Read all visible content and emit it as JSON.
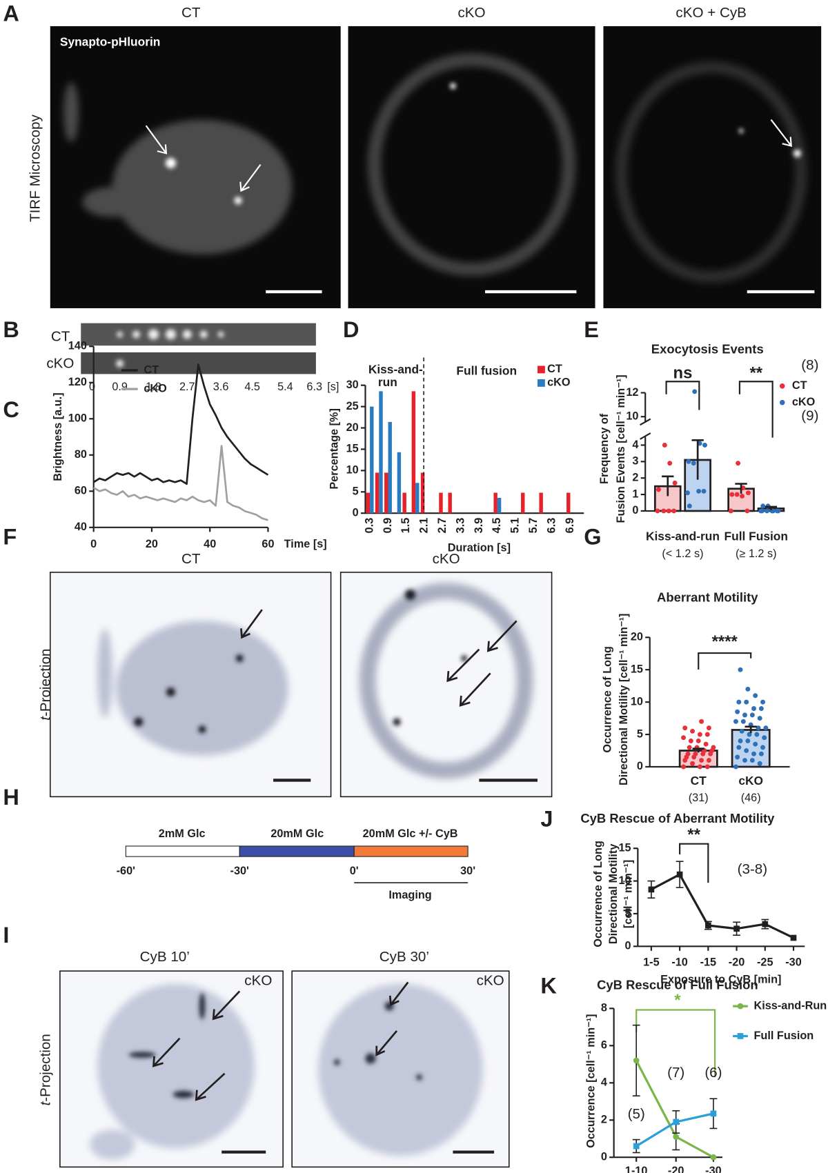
{
  "panel_a": {
    "label": "A",
    "columns": [
      "CT",
      "cKO",
      "cKO + CyB"
    ],
    "stain": "Synapto-pHluorin",
    "row_label": "TIRF Microscopy"
  },
  "panel_b": {
    "label": "B",
    "rows": [
      "CT",
      "cKO"
    ],
    "times": [
      "0",
      "0.9",
      "1.8",
      "2.7",
      "3.6",
      "4.5",
      "5.4",
      "6.3"
    ],
    "unit": "[s]"
  },
  "panel_f": {
    "label": "F",
    "columns": [
      "CT",
      "cKO"
    ],
    "row_label": [
      "t",
      "-Projection"
    ]
  },
  "panel_h": {
    "label": "H",
    "phases": [
      "2mM Glc",
      "20mM Glc",
      "20mM Glc +/- CyB"
    ],
    "ticks": [
      "-60'",
      "-30'",
      "0'",
      "30'"
    ],
    "window": "Imaging"
  },
  "panel_i": {
    "label": "I",
    "columns": [
      "CyB 10’",
      "CyB 30’"
    ],
    "insets": [
      "cKO",
      "cKO"
    ],
    "row_label": [
      "t",
      "-Projection"
    ]
  },
  "chart_data": [
    {
      "type": "line",
      "panel_label": "C",
      "ylabel": "Brightness [a.u.]",
      "xlabel": "Time [s]",
      "x": [
        0,
        2,
        4,
        6,
        8,
        10,
        12,
        14,
        16,
        18,
        20,
        22,
        24,
        26,
        28,
        30,
        32,
        34,
        36,
        38,
        40,
        42,
        44,
        46,
        48,
        50,
        52,
        54,
        56,
        58,
        60
      ],
      "series": [
        {
          "name": "CT",
          "color": "#231f20",
          "values": [
            65,
            67,
            66,
            68,
            70,
            69,
            70,
            68,
            70,
            68,
            66,
            67,
            65,
            66,
            65,
            66,
            64,
            100,
            130,
            118,
            108,
            102,
            95,
            90,
            86,
            82,
            78,
            75,
            73,
            71,
            69
          ]
        },
        {
          "name": "cKO",
          "color": "#a0a0a0",
          "values": [
            62,
            60,
            61,
            59,
            58,
            60,
            57,
            58,
            56,
            57,
            56,
            55,
            56,
            55,
            54,
            56,
            55,
            57,
            55,
            54,
            55,
            52,
            85,
            54,
            52,
            51,
            49,
            48,
            47,
            45,
            44
          ]
        }
      ],
      "xlim": [
        0,
        60
      ],
      "xticks": [
        0,
        20,
        40,
        60
      ],
      "ylim": [
        40,
        140
      ],
      "yticks": [
        40,
        60,
        80,
        100,
        120,
        140
      ]
    },
    {
      "type": "bar",
      "panel_label": "D",
      "ylabel": "Percentage [%]",
      "xlabel": "Duration [s]",
      "annotations": [
        "Kiss-and-",
        "run",
        "Full fusion"
      ],
      "categories": [
        "0.3",
        null,
        "0.9",
        null,
        "1.5",
        null,
        "2.1",
        null,
        "2.7",
        null,
        "3.3",
        null,
        "3.9",
        null,
        "4.5",
        null,
        "5.1",
        null,
        "5.7",
        null,
        "6.3",
        null,
        "6.9",
        null
      ],
      "series": [
        {
          "name": "CT",
          "color": "#e8202a",
          "values": [
            4.8,
            9.5,
            9.5,
            0,
            4.8,
            28.6,
            9.5,
            0,
            4.8,
            4.8,
            0,
            0,
            0,
            0,
            4.8,
            0,
            0,
            4.8,
            0,
            4.8,
            0,
            0,
            4.8,
            0
          ]
        },
        {
          "name": "cKO",
          "color": "#2a7bbf",
          "values": [
            25,
            28.6,
            21.4,
            14.3,
            0,
            7.1,
            0,
            0,
            0,
            0,
            0,
            0,
            0,
            0,
            3.6,
            0,
            0,
            0,
            0,
            0,
            0,
            0,
            0,
            0
          ]
        }
      ],
      "ylim": [
        0,
        30
      ],
      "yticks": [
        0,
        5,
        10,
        15,
        20,
        25,
        30
      ]
    },
    {
      "type": "bar",
      "panel_label": "E",
      "title": "Exocytosis Events",
      "ylabel": [
        "Frequency of",
        "Fusion Events [cell⁻¹ min⁻¹]"
      ],
      "categories": [
        "Kiss-and-run",
        "Full Fusion"
      ],
      "category_notes": [
        "(< 1.2 s)",
        "(≥ 1.2 s)"
      ],
      "significance": [
        "ns",
        "**"
      ],
      "series": [
        {
          "name": "CT",
          "color": "#e8303a",
          "bar_color": "#f7c6c9",
          "n_label": "(8)",
          "values": [
            1.5,
            1.35
          ],
          "errors": [
            0.6,
            0.3
          ],
          "points": [
            [
              0,
              0,
              0,
              0,
              1.3,
              1.7,
              2.9,
              4
            ],
            [
              0,
              0,
              0.9,
              1,
              1,
              1.1,
              1.4,
              2.9
            ]
          ]
        },
        {
          "name": "cKO",
          "color": "#2f70b8",
          "bar_color": "#bcd4ef",
          "n_label": "(9)",
          "values": [
            3.1,
            0.15
          ],
          "errors": [
            1.2,
            0.1
          ],
          "points": [
            [
              1.1,
              1.2,
              1.2,
              2.9,
              3,
              4,
              4.1,
              12.1,
              0.3
            ],
            [
              0,
              0,
              0,
              0,
              0,
              0,
              0,
              0.3,
              0.3
            ]
          ]
        }
      ],
      "ylim": [
        0,
        12
      ],
      "ybreak": [
        4.5,
        9.5
      ],
      "yticks": [
        0,
        1,
        2,
        3,
        4,
        10,
        12
      ]
    },
    {
      "type": "bar",
      "panel_label": "G",
      "title": "Aberrant Motility",
      "ylabel": [
        "Occurrence of Long",
        "Directional Motility [cell⁻¹ min⁻¹]"
      ],
      "categories": [
        "CT",
        "cKO"
      ],
      "category_notes": [
        "(31)",
        "(46)"
      ],
      "significance": "****",
      "values": [
        2.5,
        5.7
      ],
      "errors": [
        0.3,
        0.5
      ],
      "bar_colors": [
        "#f7c6c9",
        "#bcd4ef"
      ],
      "point_colors": [
        "#e8303a",
        "#2f70b8"
      ],
      "points": [
        [
          0,
          0,
          0,
          0.5,
          1,
          1,
          1,
          1.5,
          1.5,
          2,
          2,
          2,
          2,
          2.5,
          2.5,
          3,
          3,
          3,
          3.5,
          4,
          4,
          4.5,
          5,
          5,
          5.5,
          6,
          6,
          7
        ],
        [
          0,
          0.5,
          1,
          1,
          1.5,
          2,
          2,
          2.5,
          3,
          3,
          3.5,
          4,
          4,
          4.5,
          5,
          5,
          5.5,
          6,
          6,
          6.5,
          7,
          7,
          7.5,
          8,
          8,
          8.5,
          9,
          9,
          10,
          10,
          10,
          11,
          12,
          15
        ]
      ],
      "ylim": [
        0,
        20
      ],
      "yticks": [
        0,
        5,
        10,
        15,
        20
      ]
    },
    {
      "type": "line",
      "panel_label": "J",
      "title": "CyB Rescue of Aberrant Motility",
      "ylabel": [
        "Occurrence of Long",
        "Directional Motility",
        "[cell⁻¹ min⁻¹]"
      ],
      "xlabel": "Exposure to CyB [min]",
      "categories": [
        "1-5",
        "-10",
        "-15",
        "-20",
        "-25",
        "-30"
      ],
      "significance": "**",
      "annotation": "(3-8)",
      "series": [
        {
          "color": "#231f20",
          "marker": "square",
          "values": [
            8.7,
            11,
            3.2,
            2.7,
            3.4,
            1.3
          ],
          "errors": [
            1.3,
            2,
            0.6,
            1,
            0.7,
            null
          ]
        }
      ],
      "ylim": [
        0,
        15
      ],
      "yticks": [
        0,
        5,
        10,
        15
      ]
    },
    {
      "type": "line",
      "panel_label": "K",
      "title": "CyB Rescue of Full Fusion",
      "ylabel": "Occurrence [cell⁻¹ min⁻¹]",
      "xlabel": "Exposure to CyB [min]",
      "categories": [
        "1-10",
        "-20",
        "-30"
      ],
      "category_notes": [
        "(5)",
        "(7)",
        "(6)"
      ],
      "significance": "*",
      "series": [
        {
          "name": "Kiss-and-Run",
          "color": "#7ab648",
          "marker": "circle",
          "values": [
            5.2,
            1.1,
            0
          ],
          "errors": [
            1.9,
            0.7,
            null
          ]
        },
        {
          "name": "Full Fusion",
          "color": "#2b9fd9",
          "marker": "square",
          "values": [
            0.6,
            1.9,
            2.35
          ],
          "errors": [
            0.35,
            0.6,
            0.8
          ]
        }
      ],
      "ylim": [
        0,
        8
      ],
      "yticks": [
        0,
        2,
        4,
        6,
        8
      ]
    }
  ]
}
